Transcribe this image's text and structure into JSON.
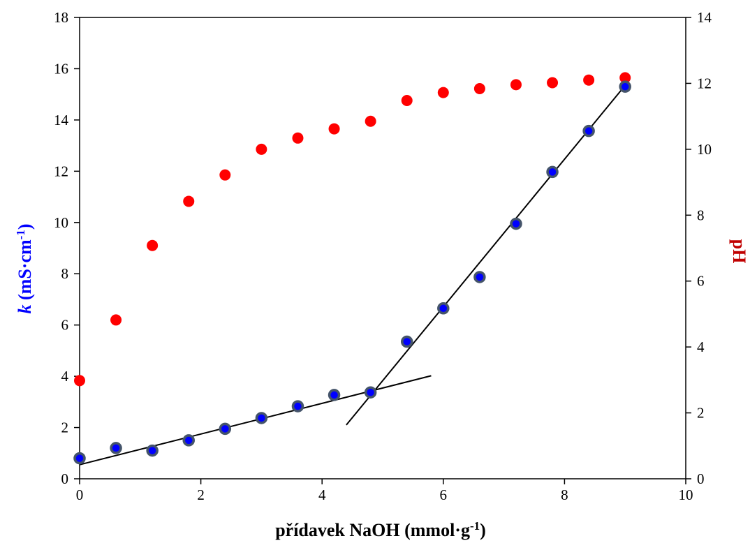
{
  "chart_data": {
    "type": "scatter",
    "xlabel": "přídavek NaOH (mmol·g",
    "xlabel_sup": "-1",
    "xlabel_end": ")",
    "ylabel_italic": "k",
    "ylabel": " (mS·cm",
    "ylabel_sup": "-1",
    "ylabel_end": ")",
    "y2label": "pH",
    "xlim": [
      0,
      10
    ],
    "ylim": [
      0,
      18
    ],
    "y2lim": [
      0,
      14
    ],
    "x_ticks": [
      "0",
      "2",
      "4",
      "6",
      "8",
      "10"
    ],
    "y_ticks": [
      "0",
      "2",
      "4",
      "6",
      "8",
      "10",
      "12",
      "14",
      "16",
      "18"
    ],
    "y2_ticks": [
      "0",
      "2",
      "4",
      "6",
      "8",
      "10",
      "12",
      "14"
    ],
    "grid": false,
    "colors": {
      "conductivity": "#0000ff",
      "conductivity_edge": "#44546a",
      "ph": "#ff0000",
      "ylabel": "#0000ff",
      "y2label": "#c00000",
      "fit_lines": "#000000"
    },
    "series": [
      {
        "axis": "left",
        "x": [
          0,
          0.6,
          1.2,
          1.8,
          2.4,
          3.0,
          3.6,
          4.2,
          4.8,
          5.4,
          6.0,
          6.6,
          7.2,
          7.8,
          8.4,
          9.0
        ],
        "y": [
          0.8,
          1.2,
          1.1,
          1.5,
          1.95,
          2.37,
          2.83,
          3.27,
          3.37,
          5.35,
          6.65,
          7.87,
          9.95,
          11.97,
          13.57,
          15.3
        ]
      },
      {
        "axis": "right",
        "x": [
          0,
          0.6,
          1.2,
          1.8,
          2.4,
          3.0,
          3.6,
          4.2,
          4.8,
          5.4,
          6.0,
          6.6,
          7.2,
          7.8,
          8.4,
          9.0
        ],
        "y": [
          2.98,
          4.82,
          7.08,
          8.42,
          9.22,
          10.0,
          10.34,
          10.62,
          10.85,
          11.48,
          11.72,
          11.84,
          11.96,
          12.02,
          12.1,
          12.17
        ]
      }
    ],
    "fit_lines": [
      {
        "axis": "left",
        "x": [
          0,
          5.8
        ],
        "y": [
          0.55,
          4.02
        ]
      },
      {
        "axis": "left",
        "x": [
          4.4,
          9.0
        ],
        "y": [
          2.1,
          15.35
        ]
      }
    ]
  }
}
